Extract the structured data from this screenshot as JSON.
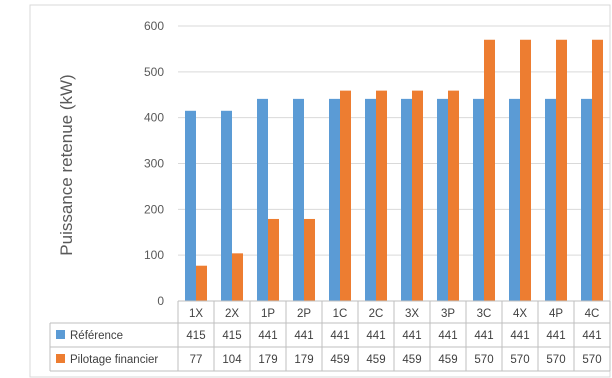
{
  "chart_data": {
    "type": "bar",
    "title": "",
    "ylabel": "Puissance retenue (kW)",
    "xlabel": "",
    "ylim": [
      0,
      600
    ],
    "yticks": [
      0,
      100,
      200,
      300,
      400,
      500,
      600
    ],
    "grid": true,
    "legend": "data-table",
    "categories": [
      "1X",
      "2X",
      "1P",
      "2P",
      "1C",
      "2C",
      "3X",
      "3P",
      "3C",
      "4X",
      "4P",
      "4C"
    ],
    "series": [
      {
        "name": "Référence",
        "color": "#5B9BD5",
        "values": [
          415,
          415,
          441,
          441,
          441,
          441,
          441,
          441,
          441,
          441,
          441,
          441
        ]
      },
      {
        "name": "Pilotage financier",
        "color": "#ED7D31",
        "values": [
          77,
          104,
          179,
          179,
          459,
          459,
          459,
          459,
          570,
          570,
          570,
          570
        ]
      }
    ]
  }
}
